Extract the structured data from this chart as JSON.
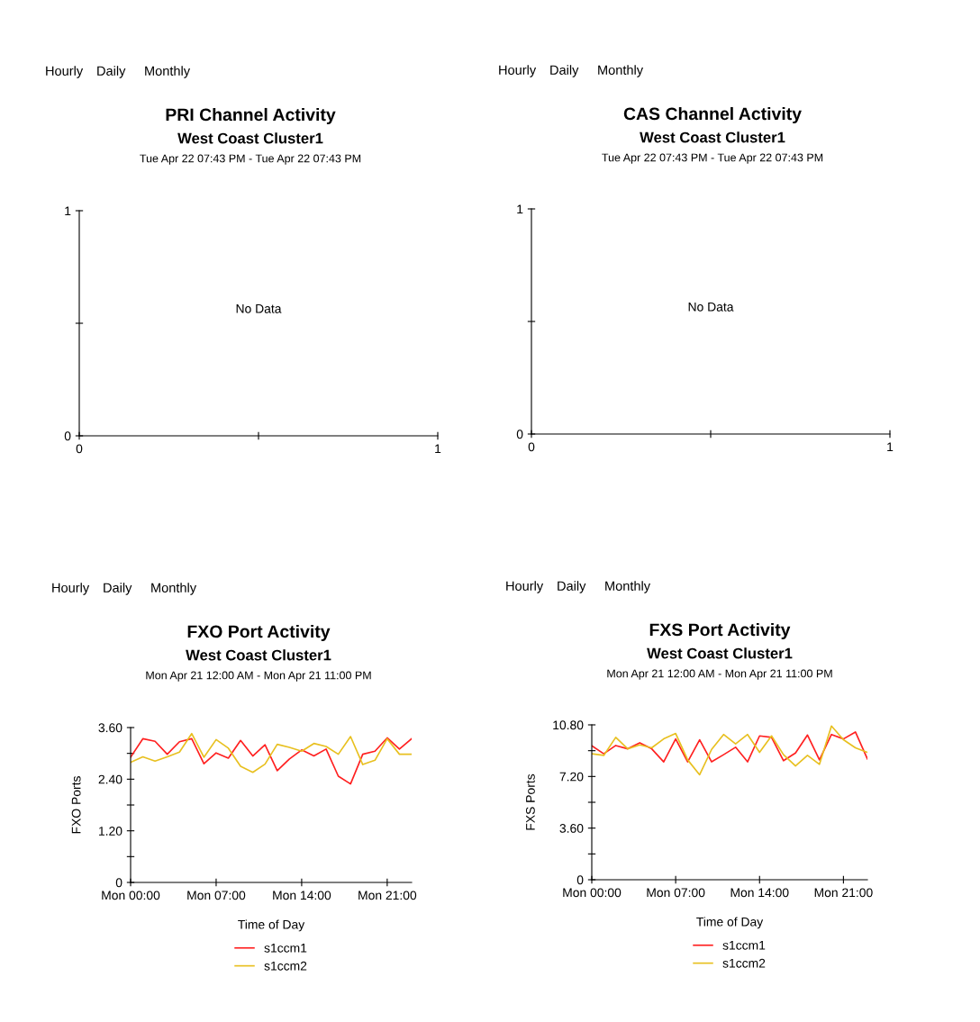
{
  "chart_data": [
    {
      "type": "line",
      "title": "PRI Channel Activity",
      "subtitle": "West Coast Cluster1\nTue Apr 22 07:43 PM - Tue Apr 22 07:43 PM",
      "annotations": [
        "Hourly",
        "Daily",
        "Monthly",
        "No Data"
      ],
      "xlim": [
        0,
        1
      ],
      "xticks": [
        0,
        {
          "value": 0.5,
          "label": null
        },
        1
      ],
      "ylim": [
        0,
        1
      ],
      "yticks": [
        0,
        {
          "value": 0.5,
          "label": null
        },
        1
      ],
      "grid": false,
      "legend": false
    },
    {
      "type": "line",
      "title": "CAS Channel Activity",
      "subtitle": "West Coast Cluster1\nTue Apr 22 07:43 PM - Tue Apr 22 07:43 PM",
      "annotations": [
        "Hourly",
        "Daily",
        "Monthly",
        "No Data"
      ],
      "xlim": [
        0,
        1
      ],
      "xticks": [
        0,
        {
          "value": 0.5,
          "label": null
        },
        1
      ],
      "ylim": [
        0,
        1
      ],
      "yticks": [
        0,
        {
          "value": 0.5,
          "label": null
        },
        1
      ],
      "grid": false,
      "legend": false
    },
    {
      "type": "line",
      "title": "FXO Port Activity",
      "subtitle": "West Coast Cluster1\nMon Apr 21 12:00 AM - Mon Apr 21 11:00 PM",
      "annotations": [
        "Hourly",
        "Daily",
        "Monthly"
      ],
      "xlabel": "Time of Day",
      "ylabel": "FXO Ports",
      "categories": [
        "Mon 00:00",
        null,
        null,
        null,
        null,
        null,
        null,
        "Mon 07:00",
        null,
        null,
        null,
        null,
        null,
        null,
        "Mon 14:00",
        null,
        null,
        null,
        null,
        null,
        null,
        "Mon 21:00",
        null,
        null
      ],
      "series": [
        {
          "name": "s1ccm1",
          "color": "#ff2020",
          "values": [
            2.91,
            3.34,
            3.28,
            2.98,
            3.27,
            3.34,
            2.76,
            3.01,
            2.89,
            3.3,
            2.94,
            3.2,
            2.6,
            2.87,
            3.08,
            2.94,
            3.1,
            2.47,
            2.29,
            2.98,
            3.05,
            3.36,
            3.1,
            3.34
          ]
        },
        {
          "name": "s1ccm2",
          "color": "#e8c020",
          "values": [
            2.79,
            2.92,
            2.82,
            2.92,
            3.03,
            3.46,
            2.91,
            3.32,
            3.12,
            2.7,
            2.56,
            2.75,
            3.21,
            3.14,
            3.05,
            3.23,
            3.16,
            2.98,
            3.39,
            2.74,
            2.84,
            3.34,
            2.98,
            2.98
          ]
        }
      ],
      "ylim": [
        0,
        3.6
      ],
      "yticks": [
        0,
        {
          "value": 0.6,
          "label": null
        },
        {
          "value": 1.2,
          "label": "1.20"
        },
        {
          "value": 1.8,
          "label": null
        },
        {
          "value": 2.4,
          "label": "2.40"
        },
        {
          "value": 3.0,
          "label": null
        },
        {
          "value": 3.6,
          "label": "3.60"
        }
      ],
      "grid": false,
      "legend": "bottom",
      "marker": "none",
      "line_style": "solid"
    },
    {
      "type": "line",
      "title": "FXS Port Activity",
      "subtitle": "West Coast Cluster1\nMon Apr 21 12:00 AM - Mon Apr 21 11:00 PM",
      "annotations": [
        "Hourly",
        "Daily",
        "Monthly"
      ],
      "xlabel": "Time of Day",
      "ylabel": "FXS Ports",
      "categories": [
        "Mon 00:00",
        null,
        null,
        null,
        null,
        null,
        null,
        "Mon 07:00",
        null,
        null,
        null,
        null,
        null,
        null,
        "Mon 14:00",
        null,
        null,
        null,
        null,
        null,
        null,
        "Mon 21:00",
        null,
        null
      ],
      "series": [
        {
          "name": "s1ccm1",
          "color": "#ff2020",
          "values": [
            9.34,
            8.78,
            9.36,
            9.13,
            9.55,
            9.13,
            8.22,
            9.82,
            8.22,
            9.76,
            8.22,
            8.72,
            9.24,
            8.22,
            10.03,
            9.93,
            8.3,
            8.84,
            10.09,
            8.36,
            10.13,
            9.82,
            10.3,
            8.42
          ]
        },
        {
          "name": "s1ccm2",
          "color": "#e8c020",
          "values": [
            8.78,
            8.67,
            9.93,
            9.13,
            9.4,
            9.2,
            9.82,
            10.2,
            8.36,
            7.32,
            9.09,
            10.13,
            9.47,
            10.13,
            8.88,
            10.03,
            8.72,
            7.94,
            8.67,
            8.05,
            10.72,
            9.76,
            9.2,
            8.88
          ]
        }
      ],
      "ylim": [
        0,
        10.8
      ],
      "yticks": [
        0,
        {
          "value": 1.8,
          "label": null
        },
        {
          "value": 3.6,
          "label": "3.60"
        },
        {
          "value": 5.4,
          "label": null
        },
        {
          "value": 7.2,
          "label": "7.20"
        },
        {
          "value": 9.0,
          "label": null
        },
        {
          "value": 10.8,
          "label": "10.80"
        }
      ],
      "grid": false,
      "legend": "bottom",
      "marker": "none",
      "line_style": "solid"
    }
  ]
}
